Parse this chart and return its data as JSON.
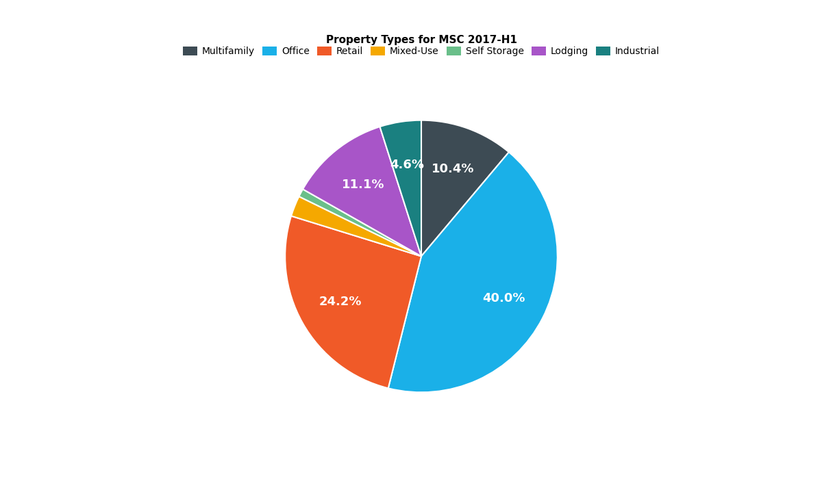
{
  "title": "Property Types for MSC 2017-H1",
  "labels": [
    "Multifamily",
    "Office",
    "Retail",
    "Mixed-Use",
    "Self Storage",
    "Lodging",
    "Industrial"
  ],
  "values": [
    10.4,
    40.0,
    24.2,
    2.3,
    0.9,
    11.1,
    4.6
  ],
  "colors": [
    "#3d4b54",
    "#1ab0e8",
    "#f05a28",
    "#f5a800",
    "#6abf8a",
    "#a855c8",
    "#1a8080"
  ],
  "pct_labels": [
    "10.4%",
    "40.0%",
    "24.2%",
    "",
    "",
    "11.1%",
    "4.6%"
  ],
  "show_label": [
    true,
    true,
    true,
    false,
    false,
    true,
    true
  ],
  "title_fontsize": 11,
  "legend_fontsize": 10,
  "label_fontsize": 13,
  "background_color": "#ffffff",
  "startangle": 90
}
